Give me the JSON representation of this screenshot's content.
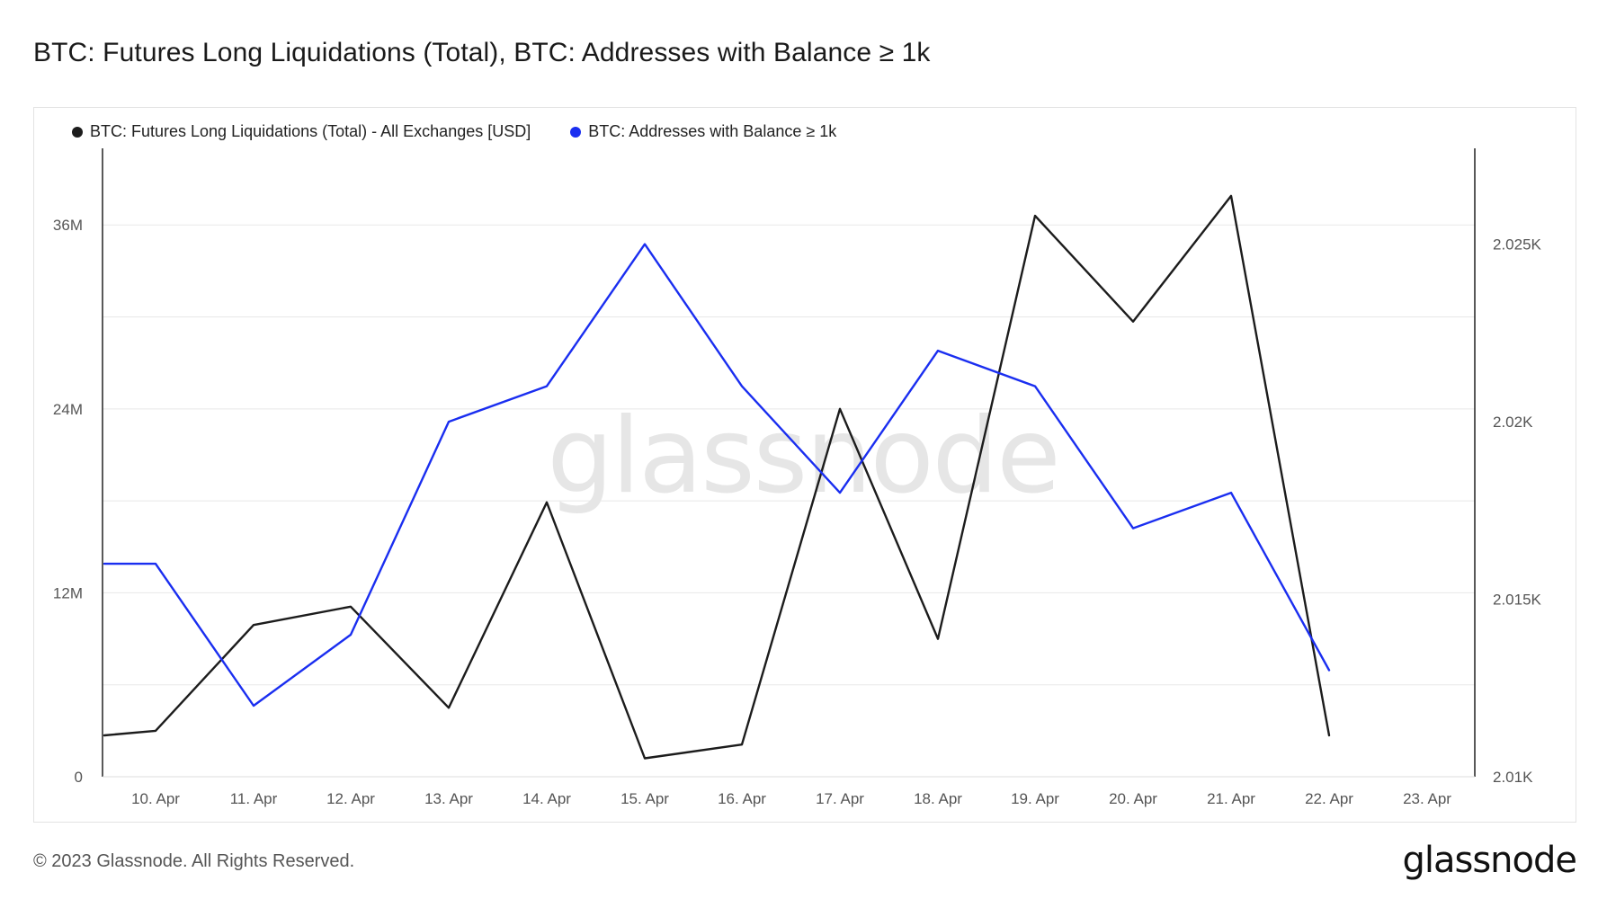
{
  "title": "BTC: Futures Long Liquidations (Total), BTC: Addresses with Balance ≥ 1k",
  "footer": {
    "copyright": "© 2023 Glassnode. All Rights Reserved.",
    "brand": "glassnode"
  },
  "watermark": "glassnode",
  "colors": {
    "liquidations": "#1c1c1c",
    "addresses": "#1a2ef0",
    "grid": "#e8e8e8",
    "axis": "#222222"
  },
  "chart_data": {
    "type": "line",
    "title": "BTC: Futures Long Liquidations (Total), BTC: Addresses with Balance ≥ 1k",
    "x": [
      "10. Apr",
      "11. Apr",
      "12. Apr",
      "13. Apr",
      "14. Apr",
      "15. Apr",
      "16. Apr",
      "17. Apr",
      "18. Apr",
      "19. Apr",
      "20. Apr",
      "21. Apr",
      "22. Apr",
      "23. Apr"
    ],
    "x_tick_labels": [
      "10. Apr",
      "11. Apr",
      "12. Apr",
      "13. Apr",
      "14. Apr",
      "15. Apr",
      "16. Apr",
      "17. Apr",
      "18. Apr",
      "19. Apr",
      "20. Apr",
      "21. Apr",
      "22. Apr",
      "23. Apr"
    ],
    "y_left": {
      "range": [
        0,
        41
      ],
      "ticks": [
        0,
        12000000,
        24000000,
        36000000
      ],
      "tick_labels": [
        "0",
        "12M",
        "24M",
        "36M"
      ],
      "grid_step": 6000000
    },
    "y_right": {
      "range": [
        2010,
        2027.7
      ],
      "ticks": [
        2010,
        2015,
        2020,
        2025
      ],
      "tick_labels": [
        "2.01K",
        "2.015K",
        "2.02K",
        "2.025K"
      ]
    },
    "grid": true,
    "legend_position": "top-left",
    "series": [
      {
        "name": "BTC: Futures Long Liquidations (Total) - All Exchanges [USD]",
        "axis": "left",
        "color": "#1c1c1c",
        "points": [
          {
            "x": "10. Apr",
            "y": 2700000
          },
          {
            "x": "10. Apr",
            "y": 3000000
          },
          {
            "x": "11. Apr",
            "y": 9900000
          },
          {
            "x": "12. Apr",
            "y": 11100000
          },
          {
            "x": "13. Apr",
            "y": 4500000
          },
          {
            "x": "14. Apr",
            "y": 17900000
          },
          {
            "x": "15. Apr",
            "y": 1200000
          },
          {
            "x": "16. Apr",
            "y": 2100000
          },
          {
            "x": "17. Apr",
            "y": 24000000
          },
          {
            "x": "18. Apr",
            "y": 9000000
          },
          {
            "x": "19. Apr",
            "y": 36600000
          },
          {
            "x": "20. Apr",
            "y": 29700000
          },
          {
            "x": "21. Apr",
            "y": 37900000
          },
          {
            "x": "22. Apr",
            "y": 2700000
          }
        ]
      },
      {
        "name": "BTC: Addresses with Balance ≥ 1k",
        "axis": "right",
        "color": "#1a2ef0",
        "points": [
          {
            "x": "10. Apr",
            "y": 2016
          },
          {
            "x": "10. Apr",
            "y": 2016
          },
          {
            "x": "11. Apr",
            "y": 2012
          },
          {
            "x": "12. Apr",
            "y": 2014
          },
          {
            "x": "13. Apr",
            "y": 2020
          },
          {
            "x": "14. Apr",
            "y": 2021
          },
          {
            "x": "15. Apr",
            "y": 2025
          },
          {
            "x": "16. Apr",
            "y": 2021
          },
          {
            "x": "17. Apr",
            "y": 2018
          },
          {
            "x": "18. Apr",
            "y": 2022
          },
          {
            "x": "19. Apr",
            "y": 2021
          },
          {
            "x": "20. Apr",
            "y": 2017
          },
          {
            "x": "21. Apr",
            "y": 2018
          },
          {
            "x": "22. Apr",
            "y": 2013
          }
        ]
      }
    ]
  }
}
